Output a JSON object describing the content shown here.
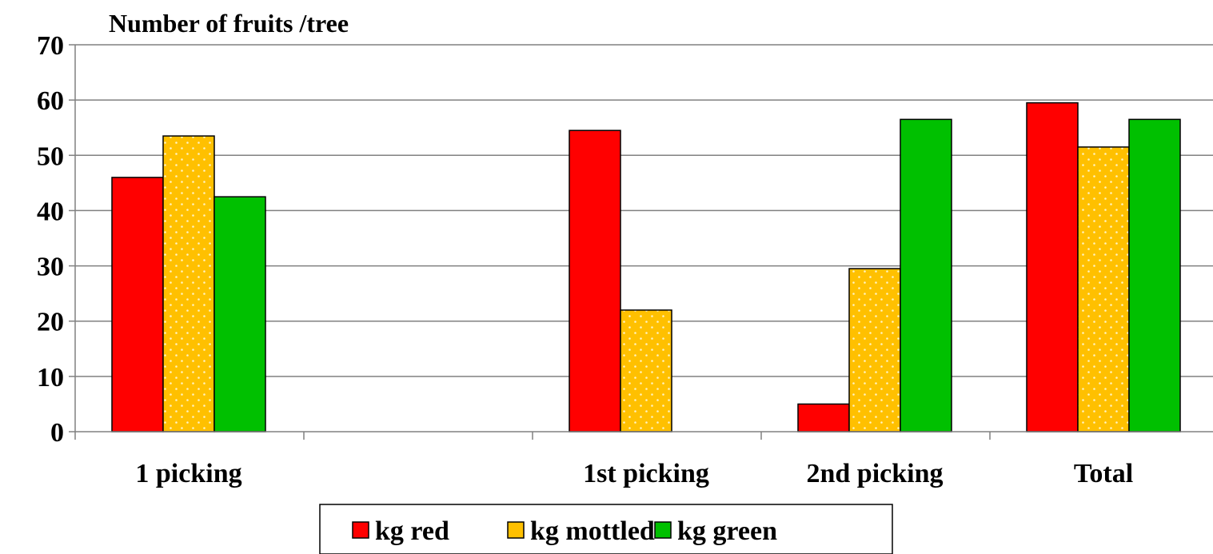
{
  "chart_data": {
    "type": "bar",
    "title": "Number of fruits /tree",
    "categories": [
      "1 picking",
      "",
      "1st picking",
      "2nd picking",
      "Total"
    ],
    "series": [
      {
        "name": "kg red",
        "color": "#ff0000",
        "pattern": "solid",
        "values": [
          46,
          null,
          54.5,
          5,
          59.5
        ]
      },
      {
        "name": "kg mottled",
        "color": "#ffc000",
        "pattern": "dotted",
        "values": [
          53.5,
          null,
          22,
          29.5,
          51.5
        ]
      },
      {
        "name": "kg green",
        "color": "#00c000",
        "pattern": "solid",
        "values": [
          42.5,
          null,
          null,
          56.5,
          56.5
        ]
      }
    ],
    "ylim": [
      0,
      70
    ],
    "yticks": [
      0,
      10,
      20,
      30,
      40,
      50,
      60,
      70
    ],
    "grid": true,
    "legend": "bottom-center"
  }
}
